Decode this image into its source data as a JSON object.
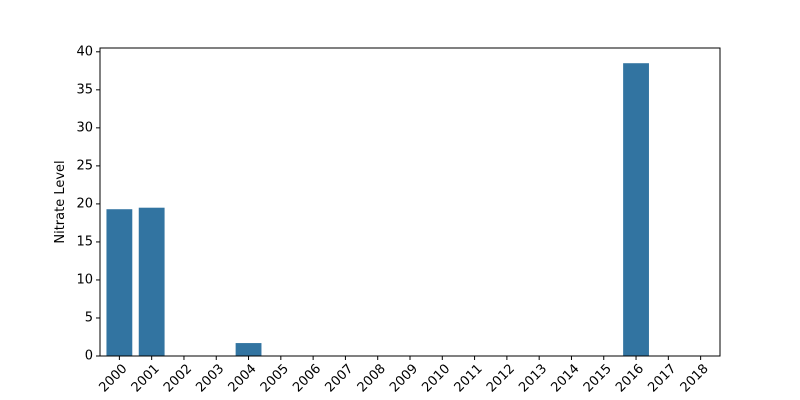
{
  "chart_data": {
    "type": "bar",
    "title": "",
    "xlabel": "",
    "ylabel": "Nitrate Level",
    "categories": [
      "2000",
      "2001",
      "2002",
      "2003",
      "2004",
      "2005",
      "2006",
      "2007",
      "2008",
      "2009",
      "2010",
      "2011",
      "2012",
      "2013",
      "2014",
      "2015",
      "2016",
      "2017",
      "2018"
    ],
    "values": [
      19.3,
      19.5,
      0,
      0,
      1.7,
      0,
      0,
      0,
      0,
      0,
      0,
      0,
      0,
      0,
      0,
      0,
      38.5,
      0,
      0
    ],
    "ylim": [
      0,
      40.5
    ],
    "yticks": [
      0,
      5,
      10,
      15,
      20,
      25,
      30,
      35,
      40
    ],
    "ytick_labels": [
      "0",
      "5",
      "10",
      "15",
      "20",
      "25",
      "30",
      "35",
      "40"
    ],
    "xtick_rotation": "45 degrees",
    "grid": false,
    "legend": "none",
    "colors": {
      "bar": "#3274a1",
      "axis": "#000000",
      "background": "#ffffff"
    }
  }
}
